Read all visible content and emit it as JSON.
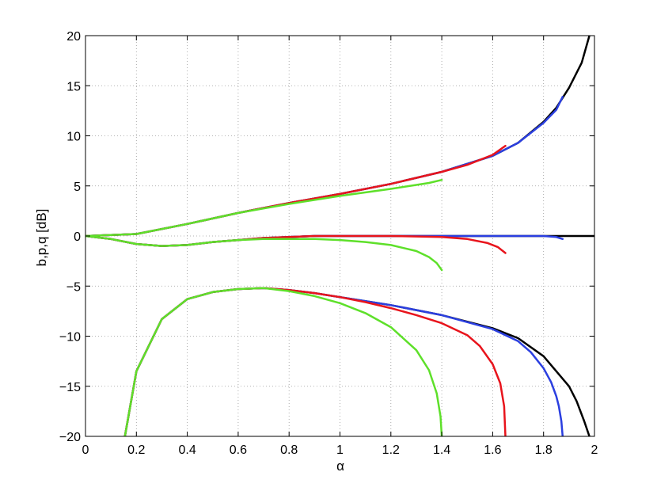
{
  "chart_data": {
    "type": "line",
    "title": "",
    "xlabel": "α",
    "ylabel": "b,p,q [dB]",
    "xlim": [
      0,
      2
    ],
    "ylim": [
      -20,
      20
    ],
    "xticks": [
      0,
      0.2,
      0.4,
      0.6,
      0.8,
      1,
      1.2,
      1.4,
      1.6,
      1.8,
      2
    ],
    "xtick_labels": [
      "0",
      "0.2",
      "0.4",
      "0.6",
      "0.8",
      "1",
      "1.2",
      "1.4",
      "1.6",
      "1.8",
      "2"
    ],
    "yticks": [
      -20,
      -15,
      -10,
      -5,
      0,
      5,
      10,
      15,
      20
    ],
    "ytick_labels": [
      "−20",
      "−15",
      "−10",
      "−5",
      "0",
      "5",
      "10",
      "15",
      "20"
    ],
    "grid": true,
    "legend": "none",
    "series": [
      {
        "color": "#000000",
        "group": "upper",
        "points": [
          [
            0,
            0
          ],
          [
            0.2,
            0.2
          ],
          [
            0.4,
            1.2
          ],
          [
            0.6,
            2.3
          ],
          [
            0.8,
            3.3
          ],
          [
            1.0,
            4.2
          ],
          [
            1.2,
            5.2
          ],
          [
            1.4,
            6.4
          ],
          [
            1.6,
            8.0
          ],
          [
            1.7,
            9.3
          ],
          [
            1.8,
            11.4
          ],
          [
            1.85,
            12.8
          ],
          [
            1.9,
            14.8
          ],
          [
            1.95,
            17.3
          ],
          [
            1.98,
            20.0
          ]
        ]
      },
      {
        "color": "#000000",
        "group": "middle",
        "points": [
          [
            0,
            0
          ],
          [
            0.1,
            -0.3
          ],
          [
            0.2,
            -0.8
          ],
          [
            0.3,
            -1.0
          ],
          [
            0.4,
            -0.9
          ],
          [
            0.5,
            -0.6
          ],
          [
            0.6,
            -0.4
          ],
          [
            0.7,
            -0.2
          ],
          [
            0.8,
            -0.1
          ],
          [
            0.9,
            0
          ],
          [
            1.0,
            0
          ],
          [
            1.5,
            0
          ],
          [
            1.8,
            0
          ],
          [
            2.0,
            0
          ]
        ]
      },
      {
        "color": "#000000",
        "group": "lower",
        "points": [
          [
            0.155,
            -20
          ],
          [
            0.2,
            -13.5
          ],
          [
            0.3,
            -8.3
          ],
          [
            0.4,
            -6.3
          ],
          [
            0.5,
            -5.6
          ],
          [
            0.6,
            -5.3
          ],
          [
            0.7,
            -5.2
          ],
          [
            0.8,
            -5.4
          ],
          [
            0.9,
            -5.7
          ],
          [
            1.0,
            -6.1
          ],
          [
            1.2,
            -6.9
          ],
          [
            1.4,
            -7.9
          ],
          [
            1.6,
            -9.2
          ],
          [
            1.7,
            -10.2
          ],
          [
            1.8,
            -12.0
          ],
          [
            1.85,
            -13.5
          ],
          [
            1.9,
            -15.0
          ],
          [
            1.93,
            -16.5
          ],
          [
            1.96,
            -18.5
          ],
          [
            1.98,
            -20
          ]
        ]
      },
      {
        "color": "#2b3fe0",
        "group": "upper",
        "points": [
          [
            0,
            0
          ],
          [
            0.2,
            0.2
          ],
          [
            0.4,
            1.2
          ],
          [
            0.6,
            2.3
          ],
          [
            0.8,
            3.3
          ],
          [
            1.0,
            4.2
          ],
          [
            1.2,
            5.2
          ],
          [
            1.4,
            6.4
          ],
          [
            1.6,
            8.0
          ],
          [
            1.7,
            9.3
          ],
          [
            1.8,
            11.3
          ],
          [
            1.85,
            12.6
          ],
          [
            1.875,
            13.9
          ]
        ]
      },
      {
        "color": "#2b3fe0",
        "group": "middle",
        "points": [
          [
            0,
            0
          ],
          [
            0.1,
            -0.3
          ],
          [
            0.2,
            -0.8
          ],
          [
            0.3,
            -1.0
          ],
          [
            0.4,
            -0.9
          ],
          [
            0.5,
            -0.6
          ],
          [
            0.6,
            -0.4
          ],
          [
            0.7,
            -0.2
          ],
          [
            0.8,
            -0.1
          ],
          [
            0.9,
            0
          ],
          [
            1.5,
            0
          ],
          [
            1.8,
            0
          ],
          [
            1.85,
            -0.1
          ],
          [
            1.875,
            -0.3
          ]
        ]
      },
      {
        "color": "#2b3fe0",
        "group": "lower",
        "points": [
          [
            0.155,
            -20
          ],
          [
            0.2,
            -13.5
          ],
          [
            0.3,
            -8.3
          ],
          [
            0.4,
            -6.3
          ],
          [
            0.5,
            -5.6
          ],
          [
            0.6,
            -5.3
          ],
          [
            0.7,
            -5.2
          ],
          [
            0.8,
            -5.4
          ],
          [
            0.9,
            -5.7
          ],
          [
            1.0,
            -6.1
          ],
          [
            1.2,
            -6.9
          ],
          [
            1.4,
            -7.9
          ],
          [
            1.6,
            -9.3
          ],
          [
            1.7,
            -10.5
          ],
          [
            1.75,
            -11.6
          ],
          [
            1.8,
            -13.2
          ],
          [
            1.83,
            -14.6
          ],
          [
            1.85,
            -16.0
          ],
          [
            1.86,
            -17.0
          ],
          [
            1.87,
            -18.5
          ],
          [
            1.875,
            -20
          ]
        ]
      },
      {
        "color": "#e8141c",
        "group": "upper",
        "points": [
          [
            0,
            0
          ],
          [
            0.2,
            0.2
          ],
          [
            0.4,
            1.2
          ],
          [
            0.6,
            2.3
          ],
          [
            0.8,
            3.3
          ],
          [
            1.0,
            4.2
          ],
          [
            1.2,
            5.2
          ],
          [
            1.4,
            6.4
          ],
          [
            1.5,
            7.1
          ],
          [
            1.6,
            8.1
          ],
          [
            1.65,
            9.0
          ]
        ]
      },
      {
        "color": "#e8141c",
        "group": "middle",
        "points": [
          [
            0,
            0
          ],
          [
            0.1,
            -0.3
          ],
          [
            0.2,
            -0.8
          ],
          [
            0.3,
            -1.0
          ],
          [
            0.4,
            -0.9
          ],
          [
            0.5,
            -0.6
          ],
          [
            0.6,
            -0.4
          ],
          [
            0.7,
            -0.2
          ],
          [
            0.8,
            -0.1
          ],
          [
            0.9,
            0
          ],
          [
            1.2,
            0
          ],
          [
            1.4,
            -0.1
          ],
          [
            1.5,
            -0.3
          ],
          [
            1.58,
            -0.7
          ],
          [
            1.62,
            -1.1
          ],
          [
            1.65,
            -1.7
          ]
        ]
      },
      {
        "color": "#e8141c",
        "group": "lower",
        "points": [
          [
            0.155,
            -20
          ],
          [
            0.2,
            -13.5
          ],
          [
            0.3,
            -8.3
          ],
          [
            0.4,
            -6.3
          ],
          [
            0.5,
            -5.6
          ],
          [
            0.6,
            -5.3
          ],
          [
            0.7,
            -5.2
          ],
          [
            0.8,
            -5.4
          ],
          [
            0.9,
            -5.7
          ],
          [
            1.0,
            -6.1
          ],
          [
            1.1,
            -6.6
          ],
          [
            1.2,
            -7.2
          ],
          [
            1.3,
            -7.9
          ],
          [
            1.4,
            -8.7
          ],
          [
            1.5,
            -9.9
          ],
          [
            1.55,
            -11.0
          ],
          [
            1.6,
            -12.8
          ],
          [
            1.63,
            -14.7
          ],
          [
            1.645,
            -17.0
          ],
          [
            1.65,
            -20
          ]
        ]
      },
      {
        "color": "#5ee02a",
        "group": "upper",
        "points": [
          [
            0,
            0
          ],
          [
            0.2,
            0.2
          ],
          [
            0.4,
            1.2
          ],
          [
            0.6,
            2.3
          ],
          [
            0.8,
            3.2
          ],
          [
            1.0,
            4.0
          ],
          [
            1.2,
            4.7
          ],
          [
            1.3,
            5.1
          ],
          [
            1.35,
            5.3
          ],
          [
            1.4,
            5.6
          ]
        ]
      },
      {
        "color": "#5ee02a",
        "group": "middle",
        "points": [
          [
            0,
            0
          ],
          [
            0.1,
            -0.3
          ],
          [
            0.2,
            -0.8
          ],
          [
            0.3,
            -1.0
          ],
          [
            0.4,
            -0.9
          ],
          [
            0.5,
            -0.6
          ],
          [
            0.6,
            -0.4
          ],
          [
            0.7,
            -0.3
          ],
          [
            0.8,
            -0.3
          ],
          [
            0.9,
            -0.3
          ],
          [
            1.0,
            -0.4
          ],
          [
            1.1,
            -0.6
          ],
          [
            1.2,
            -0.9
          ],
          [
            1.3,
            -1.5
          ],
          [
            1.35,
            -2.1
          ],
          [
            1.38,
            -2.7
          ],
          [
            1.4,
            -3.4
          ]
        ]
      },
      {
        "color": "#5ee02a",
        "group": "lower",
        "points": [
          [
            0.155,
            -20
          ],
          [
            0.2,
            -13.5
          ],
          [
            0.3,
            -8.3
          ],
          [
            0.4,
            -6.3
          ],
          [
            0.5,
            -5.6
          ],
          [
            0.6,
            -5.3
          ],
          [
            0.7,
            -5.2
          ],
          [
            0.8,
            -5.5
          ],
          [
            0.9,
            -6.0
          ],
          [
            1.0,
            -6.7
          ],
          [
            1.1,
            -7.7
          ],
          [
            1.2,
            -9.1
          ],
          [
            1.3,
            -11.4
          ],
          [
            1.35,
            -13.4
          ],
          [
            1.38,
            -15.7
          ],
          [
            1.395,
            -18
          ],
          [
            1.4,
            -20
          ]
        ]
      }
    ]
  }
}
